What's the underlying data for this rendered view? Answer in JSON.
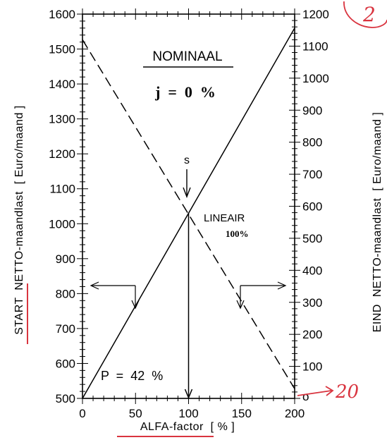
{
  "chart_data": {
    "type": "line",
    "xlabel": "ALFA-factor  [ % ]",
    "ylabel_left": "START  NETTO-maandlast  [ Euro/maand ]",
    "ylabel_right": "EIND  NETTO-maandlast  [ Euro/maand ]",
    "xlim": [
      0,
      200
    ],
    "ylim_left": [
      500,
      1600
    ],
    "ylim_right": [
      0,
      1200
    ],
    "x_ticks": [
      0,
      50,
      100,
      150,
      200
    ],
    "y_ticks_left": [
      500,
      600,
      700,
      800,
      900,
      1000,
      1100,
      1200,
      1300,
      1400,
      1500,
      1600
    ],
    "y_ticks_right": [
      100,
      200,
      300,
      400,
      500,
      600,
      700,
      800,
      900,
      1000,
      1100,
      1200
    ],
    "right_zero_label": "o",
    "series": [
      {
        "axis": "left",
        "style": "solid",
        "x": [
          0,
          100,
          200
        ],
        "y": [
          500,
          1030,
          1560
        ]
      },
      {
        "axis": "right",
        "style": "dashed",
        "x": [
          0,
          100,
          200
        ],
        "y": [
          1120,
          575,
          30
        ]
      }
    ],
    "annotations": {
      "title": "NOMINAAL",
      "rate": "j  =  0  %",
      "s_marker": "s",
      "lineair": "LINEAIR",
      "lineair_pct": "100%",
      "p_label": "P  =  42  %",
      "handwritten_20": "20",
      "handwritten_corner": "2"
    },
    "colors": {
      "ink": "#000000",
      "handwriting": "#d9343f"
    }
  }
}
